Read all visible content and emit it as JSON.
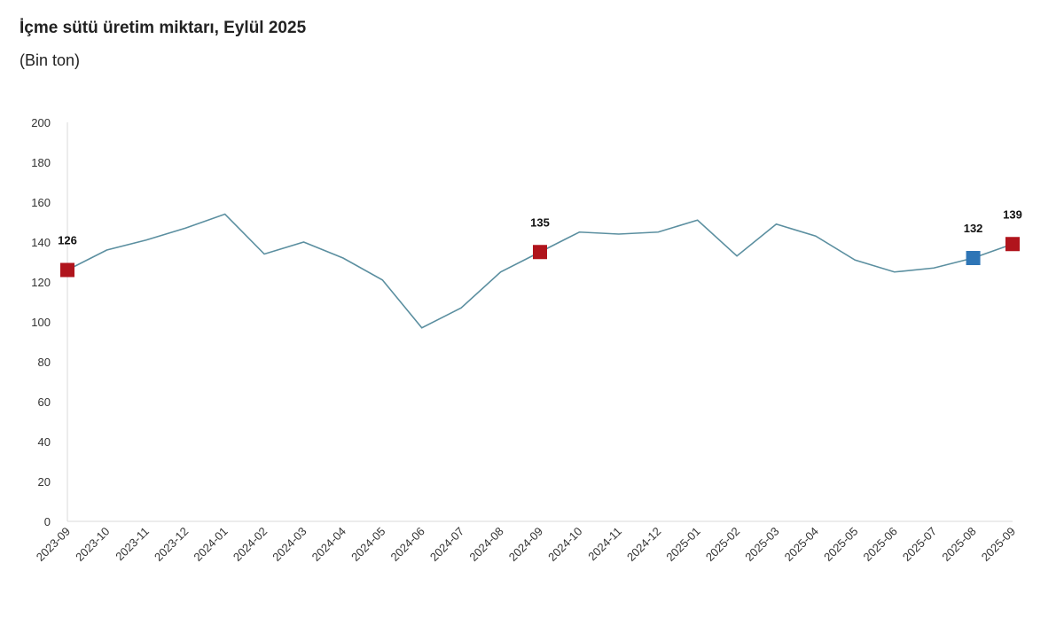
{
  "chart_data": {
    "type": "line",
    "title": "İçme sütü üretim miktarı, Eylül 2025",
    "subtitle": "(Bin ton)",
    "categories": [
      "2023-09",
      "2023-10",
      "2023-11",
      "2023-12",
      "2024-01",
      "2024-02",
      "2024-03",
      "2024-04",
      "2024-05",
      "2024-06",
      "2024-07",
      "2024-08",
      "2024-09",
      "2024-10",
      "2024-11",
      "2024-12",
      "2025-01",
      "2025-02",
      "2025-03",
      "2025-04",
      "2025-05",
      "2025-06",
      "2025-07",
      "2025-08",
      "2025-09"
    ],
    "series": [
      {
        "color": "#5b8fa0",
        "values": [
          126,
          136,
          141,
          147,
          154,
          134,
          140,
          132,
          121,
          97,
          107,
          125,
          135,
          145,
          144,
          145,
          151,
          133,
          149,
          143,
          131,
          125,
          127,
          132,
          139
        ],
        "marker_colors": [
          "#b0141c",
          null,
          null,
          null,
          null,
          null,
          null,
          null,
          null,
          null,
          null,
          null,
          "#b0141c",
          null,
          null,
          null,
          null,
          null,
          null,
          null,
          null,
          null,
          null,
          "#2e75b6",
          "#b0141c"
        ]
      }
    ],
    "ylim": [
      0,
      200
    ],
    "yticks": [
      0,
      20,
      40,
      60,
      80,
      100,
      120,
      140,
      160,
      180,
      200
    ],
    "grid": false
  }
}
